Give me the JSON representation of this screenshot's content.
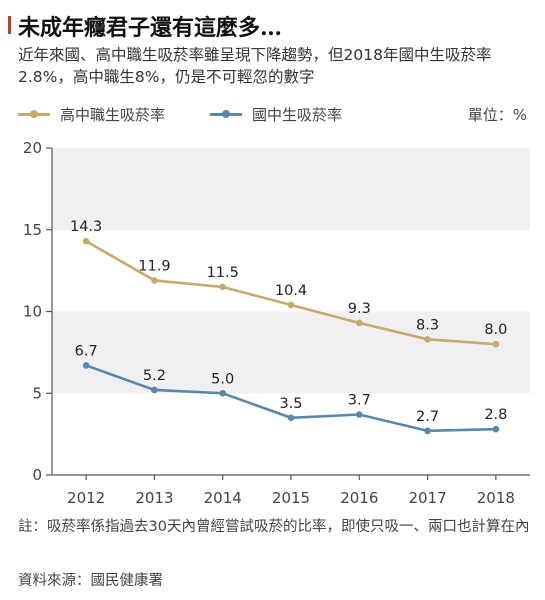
{
  "header": {
    "title": "未成年癮君子還有這麼多…",
    "subtitle": "近年來國、高中職生吸菸率雖呈現下降趨勢，但2018年國中生吸菸率2.8%，高中職生8%，仍是不可輕忽的數字"
  },
  "legend": {
    "unit": "單位：%"
  },
  "footer": {
    "note": "註：吸菸率係指過去30天內曾經嘗試吸菸的比率，即使只吸一、兩口也計算在內",
    "source": "資料來源：國民健康署"
  },
  "colors": {
    "high_school": "#c9a96e",
    "junior_high": "#5b86ad",
    "band": "#f0f0f0",
    "axis": "#555555"
  },
  "chart_data": {
    "type": "line",
    "title": "",
    "xlabel": "",
    "ylabel": "",
    "x": [
      "2012",
      "2013",
      "2014",
      "2015",
      "2016",
      "2017",
      "2018"
    ],
    "ylim": [
      0,
      20
    ],
    "yticks": [
      "0",
      "5",
      "10",
      "15",
      "20"
    ],
    "grid": "alternating horizontal bands",
    "legend_position": "top-left",
    "series": [
      {
        "name": "高中職生吸菸率",
        "color": "#c9a96e",
        "values": [
          14.3,
          11.9,
          11.5,
          10.4,
          9.3,
          8.3,
          8.0
        ],
        "labels": [
          "14.3",
          "11.9",
          "11.5",
          "10.4",
          "9.3",
          "8.3",
          "8.0"
        ]
      },
      {
        "name": "國中生吸菸率",
        "color": "#5b86ad",
        "values": [
          6.7,
          5.2,
          5.0,
          3.5,
          3.7,
          2.7,
          2.8
        ],
        "labels": [
          "6.7",
          "5.2",
          "5.0",
          "3.5",
          "3.7",
          "2.7",
          "2.8"
        ]
      }
    ]
  }
}
